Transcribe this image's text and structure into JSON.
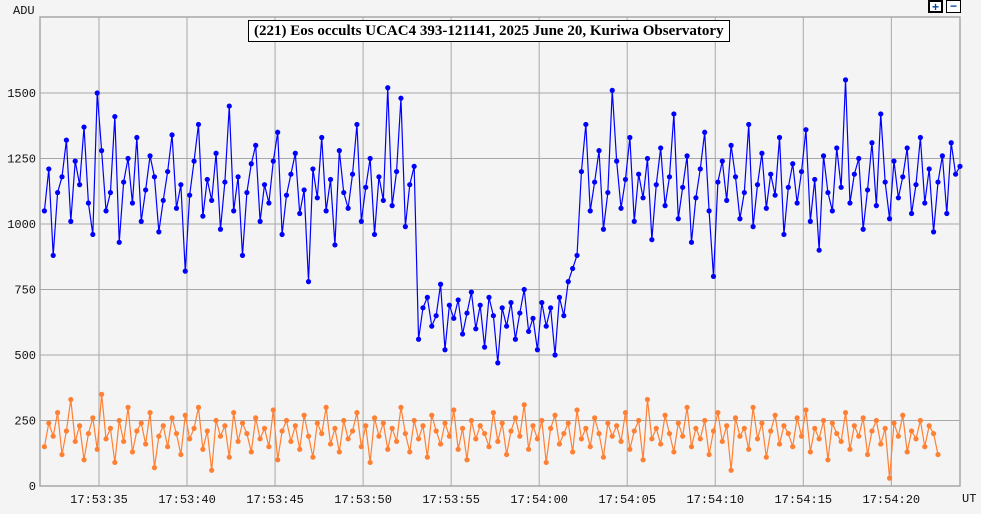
{
  "chart_data": {
    "type": "line",
    "title": "(221) Eos occults UCAC4 393-121141, 2025 June 20, Kuriwa Observatory",
    "ylabel": "ADU",
    "xlabel": "UT",
    "ylim": [
      0,
      1790
    ],
    "xlim": [
      "17:53:31.65",
      "17:54:23.9"
    ],
    "grid": true,
    "y_ticks": [
      "0",
      "250",
      "500",
      "750",
      "1000",
      "1250",
      "1500"
    ],
    "x_ticks": [
      "17:53:35",
      "17:53:40",
      "17:53:45",
      "17:53:50",
      "17:53:55",
      "17:54:00",
      "17:54:05",
      "17:54:10",
      "17:54:15",
      "17:54:20"
    ],
    "x_start": "17:53:31.9",
    "x_step_seconds": 0.25,
    "series": [
      {
        "color": "#0000ff",
        "values": [
          1050,
          1210,
          880,
          1120,
          1180,
          1320,
          1010,
          1240,
          1150,
          1370,
          1080,
          960,
          1500,
          1280,
          1050,
          1120,
          1410,
          930,
          1160,
          1250,
          1080,
          1330,
          1010,
          1130,
          1260,
          1180,
          970,
          1090,
          1200,
          1340,
          1060,
          1150,
          820,
          1110,
          1240,
          1380,
          1030,
          1170,
          1090,
          1270,
          980,
          1160,
          1450,
          1050,
          1180,
          880,
          1120,
          1230,
          1300,
          1010,
          1150,
          1080,
          1240,
          1350,
          960,
          1110,
          1190,
          1270,
          1040,
          1130,
          780,
          1210,
          1100,
          1330,
          1050,
          1170,
          920,
          1280,
          1120,
          1060,
          1190,
          1380,
          1010,
          1140,
          1250,
          960,
          1180,
          1090,
          1520,
          1070,
          1200,
          1480,
          990,
          1150,
          1220,
          560,
          680,
          720,
          610,
          650,
          770,
          520,
          690,
          640,
          710,
          580,
          660,
          740,
          600,
          690,
          530,
          720,
          650,
          470,
          680,
          610,
          700,
          560,
          660,
          750,
          590,
          640,
          520,
          700,
          610,
          680,
          500,
          720,
          650,
          780,
          830,
          880,
          1200,
          1380,
          1050,
          1160,
          1280,
          980,
          1120,
          1510,
          1240,
          1060,
          1170,
          1330,
          1010,
          1190,
          1100,
          1250,
          940,
          1150,
          1290,
          1070,
          1180,
          1420,
          1020,
          1140,
          1260,
          930,
          1100,
          1210,
          1350,
          1050,
          800,
          1160,
          1240,
          1090,
          1300,
          1180,
          1020,
          1120,
          1380,
          990,
          1150,
          1270,
          1060,
          1190,
          1110,
          1330,
          960,
          1140,
          1230,
          1080,
          1200,
          1360,
          1010,
          1170,
          900,
          1260,
          1120,
          1050,
          1290,
          1140,
          1550,
          1080,
          1190,
          1250,
          980,
          1130,
          1310,
          1070,
          1420,
          1160,
          1020,
          1240,
          1100,
          1180,
          1290,
          1040,
          1150,
          1330,
          1080,
          1210,
          970,
          1160,
          1260,
          1040,
          1310,
          1190,
          1220
        ]
      },
      {
        "color": "#ff8033",
        "values": [
          150,
          240,
          190,
          280,
          120,
          210,
          330,
          170,
          230,
          100,
          200,
          260,
          140,
          350,
          180,
          220,
          90,
          250,
          170,
          300,
          130,
          210,
          240,
          160,
          280,
          70,
          190,
          230,
          150,
          260,
          200,
          120,
          270,
          180,
          220,
          300,
          140,
          210,
          60,
          250,
          190,
          230,
          110,
          280,
          170,
          240,
          200,
          130,
          260,
          180,
          220,
          150,
          290,
          100,
          210,
          250,
          170,
          230,
          140,
          270,
          190,
          110,
          240,
          200,
          300,
          160,
          220,
          130,
          250,
          180,
          210,
          280,
          150,
          230,
          90,
          260,
          190,
          240,
          140,
          220,
          170,
          300,
          200,
          130,
          250,
          180,
          230,
          110,
          270,
          210,
          160,
          240,
          190,
          290,
          140,
          220,
          100,
          250,
          180,
          230,
          200,
          150,
          280,
          170,
          240,
          120,
          210,
          260,
          190,
          310,
          140,
          230,
          180,
          250,
          90,
          220,
          270,
          160,
          200,
          240,
          130,
          290,
          180,
          220,
          150,
          260,
          200,
          110,
          240,
          190,
          230,
          170,
          280,
          140,
          210,
          250,
          100,
          330,
          180,
          220,
          160,
          270,
          200,
          130,
          240,
          190,
          300,
          150,
          220,
          180,
          250,
          120,
          210,
          280,
          170,
          230,
          60,
          260,
          190,
          220,
          140,
          300,
          180,
          240,
          110,
          210,
          270,
          160,
          230,
          200,
          150,
          260,
          190,
          290,
          130,
          220,
          180,
          250,
          100,
          240,
          200,
          170,
          280,
          140,
          230,
          190,
          260,
          120,
          210,
          250,
          160,
          220,
          30,
          240,
          190,
          270,
          130,
          210,
          180,
          250,
          150,
          230,
          200,
          120
        ]
      }
    ]
  },
  "controls": {
    "zoom_in": "+",
    "zoom_out": "−"
  }
}
